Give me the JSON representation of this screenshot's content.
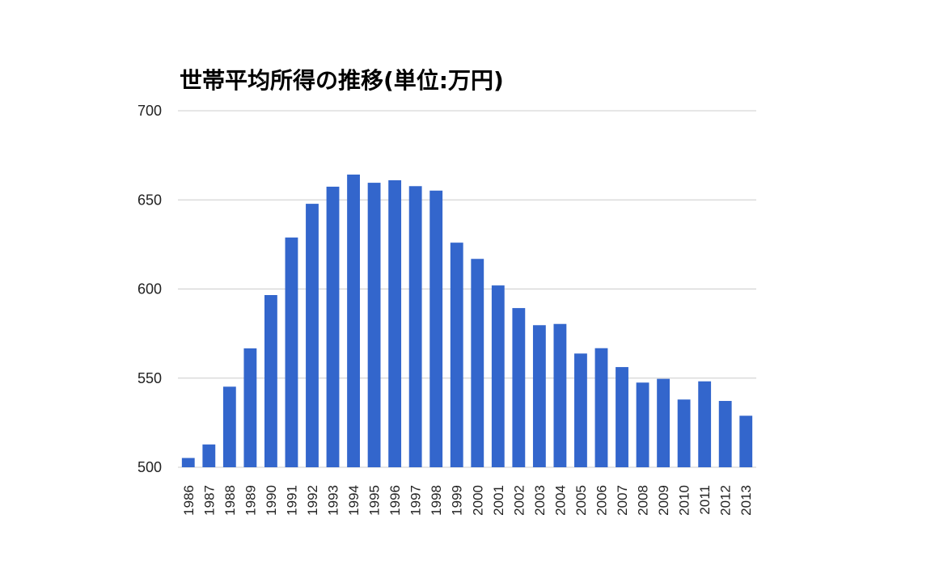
{
  "chart_data": {
    "type": "bar",
    "title": "世帯平均所得の推移(単位:万円)",
    "xlabel": "",
    "ylabel": "",
    "ylim": [
      500,
      700
    ],
    "yticks": [
      500,
      550,
      600,
      650,
      700
    ],
    "grid": true,
    "legend": "none",
    "bar_color": "#3366cc",
    "grid_color": "#cccccc",
    "categories": [
      "1986",
      "1987",
      "1988",
      "1989",
      "1990",
      "1991",
      "1992",
      "1993",
      "1994",
      "1995",
      "1996",
      "1997",
      "1998",
      "1999",
      "2000",
      "2001",
      "2002",
      "2003",
      "2004",
      "2005",
      "2006",
      "2007",
      "2008",
      "2009",
      "2010",
      "2011",
      "2012",
      "2013"
    ],
    "series": [
      {
        "values": [
          505.2,
          512.8,
          545.2,
          566.7,
          596.6,
          628.9,
          647.8,
          657.4,
          664.2,
          659.6,
          661.0,
          657.7,
          655.2,
          626.0,
          616.9,
          602.0,
          589.3,
          579.7,
          580.4,
          563.8,
          566.8,
          556.2,
          547.5,
          549.6,
          538.0,
          548.2,
          537.2,
          528.9
        ]
      }
    ]
  }
}
